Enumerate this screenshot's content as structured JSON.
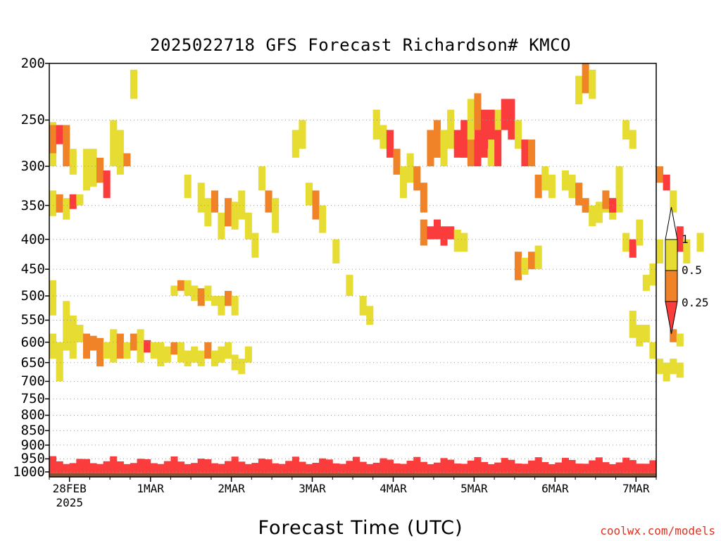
{
  "chart_data": {
    "type": "heatmap",
    "title": "2025022718 GFS Forecast Richardson# KMCO",
    "xlabel": "Forecast Time (UTC)",
    "ylabel": "",
    "y_scale": "log-pressure",
    "y_inverted": true,
    "y_ticks": [
      200,
      250,
      300,
      350,
      400,
      450,
      500,
      550,
      600,
      650,
      700,
      750,
      800,
      850,
      900,
      950,
      1000
    ],
    "x_ticks": [
      {
        "label": "28FEB",
        "sublabel": "2025",
        "hours_from_start": 6
      },
      {
        "label": "1MAR",
        "hours_from_start": 30
      },
      {
        "label": "2MAR",
        "hours_from_start": 54
      },
      {
        "label": "3MAR",
        "hours_from_start": 78
      },
      {
        "label": "4MAR",
        "hours_from_start": 102
      },
      {
        "label": "5MAR",
        "hours_from_start": 126
      },
      {
        "label": "6MAR",
        "hours_from_start": 150
      },
      {
        "label": "7MAR",
        "hours_from_start": 174
      }
    ],
    "x_range_hours": [
      0,
      180
    ],
    "y_range": [
      200,
      1020
    ],
    "grid": "dotted horizontal",
    "legend": {
      "placement": "right",
      "type": "colorbar",
      "labels": [
        "1",
        "0.5",
        "0.25"
      ],
      "bins": [
        {
          "range": "0.5-1",
          "color": "#e6dc32"
        },
        {
          "range": "0.25-0.5",
          "color": "#f08228"
        },
        {
          "range": "<0.25",
          "color": "#fa3c3c"
        }
      ]
    },
    "colors": {
      "low": "#fa3c3c",
      "mid": "#f08228",
      "high": "#e6dc32",
      "ground": "#8c5030"
    },
    "cells": [
      [
        0,
        252,
        300,
        "high"
      ],
      [
        0,
        255,
        285,
        "mid"
      ],
      [
        1,
        255,
        275,
        "low"
      ],
      [
        2,
        255,
        300,
        "mid"
      ],
      [
        3,
        280,
        310,
        "high"
      ],
      [
        0,
        330,
        365,
        "high"
      ],
      [
        1,
        335,
        360,
        "mid"
      ],
      [
        2,
        340,
        370,
        "high"
      ],
      [
        3,
        335,
        355,
        "low"
      ],
      [
        4,
        335,
        350,
        "high"
      ],
      [
        5,
        280,
        330,
        "high"
      ],
      [
        6,
        280,
        325,
        "high"
      ],
      [
        7,
        290,
        320,
        "mid"
      ],
      [
        8,
        305,
        340,
        "low"
      ],
      [
        9,
        250,
        300,
        "high"
      ],
      [
        10,
        260,
        310,
        "high"
      ],
      [
        11,
        285,
        300,
        "mid"
      ],
      [
        12,
        205,
        230,
        "high"
      ],
      [
        0,
        470,
        540,
        "high"
      ],
      [
        2,
        510,
        620,
        "high"
      ],
      [
        3,
        540,
        640,
        "high"
      ],
      [
        4,
        560,
        600,
        "high"
      ],
      [
        5,
        580,
        640,
        "mid"
      ],
      [
        6,
        585,
        620,
        "mid"
      ],
      [
        7,
        590,
        660,
        "mid"
      ],
      [
        8,
        600,
        640,
        "high"
      ],
      [
        9,
        570,
        650,
        "high"
      ],
      [
        10,
        580,
        640,
        "mid"
      ],
      [
        11,
        600,
        640,
        "high"
      ],
      [
        12,
        580,
        620,
        "mid"
      ],
      [
        13,
        570,
        650,
        "high"
      ],
      [
        14,
        595,
        625,
        "low"
      ],
      [
        15,
        600,
        640,
        "high"
      ],
      [
        16,
        620,
        660,
        "high"
      ],
      [
        0,
        580,
        640,
        "high"
      ],
      [
        1,
        600,
        700,
        "high"
      ],
      [
        20,
        310,
        340,
        "high"
      ],
      [
        22,
        320,
        360,
        "high"
      ],
      [
        23,
        340,
        380,
        "high"
      ],
      [
        24,
        330,
        360,
        "mid"
      ],
      [
        25,
        360,
        400,
        "high"
      ],
      [
        26,
        340,
        380,
        "mid"
      ],
      [
        27,
        345,
        385,
        "high"
      ],
      [
        28,
        330,
        370,
        "high"
      ],
      [
        29,
        360,
        400,
        "high"
      ],
      [
        30,
        390,
        430,
        "high"
      ],
      [
        31,
        300,
        330,
        "high"
      ],
      [
        32,
        330,
        360,
        "mid"
      ],
      [
        33,
        340,
        390,
        "high"
      ],
      [
        18,
        480,
        500,
        "high"
      ],
      [
        19,
        470,
        490,
        "mid"
      ],
      [
        20,
        470,
        500,
        "high"
      ],
      [
        21,
        480,
        510,
        "high"
      ],
      [
        22,
        485,
        520,
        "mid"
      ],
      [
        23,
        480,
        510,
        "high"
      ],
      [
        24,
        500,
        520,
        "high"
      ],
      [
        25,
        500,
        540,
        "high"
      ],
      [
        26,
        490,
        520,
        "mid"
      ],
      [
        27,
        500,
        540,
        "high"
      ],
      [
        16,
        600,
        640,
        "high"
      ],
      [
        17,
        610,
        650,
        "high"
      ],
      [
        18,
        600,
        630,
        "mid"
      ],
      [
        19,
        600,
        650,
        "high"
      ],
      [
        20,
        620,
        660,
        "high"
      ],
      [
        21,
        610,
        650,
        "high"
      ],
      [
        22,
        620,
        660,
        "high"
      ],
      [
        23,
        600,
        640,
        "mid"
      ],
      [
        24,
        620,
        660,
        "high"
      ],
      [
        25,
        610,
        650,
        "high"
      ],
      [
        26,
        600,
        640,
        "high"
      ],
      [
        27,
        630,
        670,
        "high"
      ],
      [
        28,
        640,
        680,
        "high"
      ],
      [
        29,
        610,
        650,
        "high"
      ],
      [
        36,
        260,
        290,
        "high"
      ],
      [
        37,
        250,
        280,
        "high"
      ],
      [
        38,
        320,
        350,
        "high"
      ],
      [
        39,
        330,
        370,
        "mid"
      ],
      [
        40,
        350,
        390,
        "high"
      ],
      [
        42,
        400,
        440,
        "high"
      ],
      [
        44,
        460,
        500,
        "high"
      ],
      [
        46,
        500,
        540,
        "high"
      ],
      [
        47,
        520,
        560,
        "high"
      ],
      [
        48,
        240,
        270,
        "high"
      ],
      [
        49,
        255,
        280,
        "high"
      ],
      [
        50,
        260,
        290,
        "low"
      ],
      [
        51,
        280,
        310,
        "mid"
      ],
      [
        52,
        300,
        340,
        "high"
      ],
      [
        53,
        285,
        320,
        "high"
      ],
      [
        54,
        300,
        330,
        "mid"
      ],
      [
        55,
        320,
        360,
        "mid"
      ],
      [
        56,
        260,
        300,
        "mid"
      ],
      [
        57,
        250,
        290,
        "mid"
      ],
      [
        58,
        260,
        300,
        "high"
      ],
      [
        59,
        240,
        280,
        "high"
      ],
      [
        60,
        260,
        290,
        "low"
      ],
      [
        61,
        250,
        290,
        "low"
      ],
      [
        62,
        260,
        300,
        "mid"
      ],
      [
        63,
        250,
        300,
        "low"
      ],
      [
        64,
        260,
        290,
        "low"
      ],
      [
        65,
        260,
        300,
        "high"
      ],
      [
        66,
        240,
        270,
        "high"
      ],
      [
        67,
        240,
        260,
        "high"
      ],
      [
        55,
        370,
        410,
        "mid"
      ],
      [
        56,
        380,
        400,
        "low"
      ],
      [
        57,
        370,
        400,
        "low"
      ],
      [
        58,
        380,
        410,
        "low"
      ],
      [
        59,
        380,
        400,
        "low"
      ],
      [
        60,
        385,
        420,
        "high"
      ],
      [
        61,
        390,
        420,
        "high"
      ],
      [
        62,
        230,
        270,
        "high"
      ],
      [
        63,
        225,
        260,
        "mid"
      ],
      [
        64,
        240,
        280,
        "low"
      ],
      [
        65,
        240,
        270,
        "low"
      ],
      [
        66,
        260,
        300,
        "low"
      ],
      [
        67,
        230,
        260,
        "low"
      ],
      [
        68,
        230,
        270,
        "low"
      ],
      [
        69,
        250,
        280,
        "high"
      ],
      [
        70,
        270,
        300,
        "low"
      ],
      [
        71,
        270,
        300,
        "mid"
      ],
      [
        72,
        310,
        340,
        "mid"
      ],
      [
        73,
        300,
        330,
        "high"
      ],
      [
        74,
        310,
        340,
        "high"
      ],
      [
        69,
        420,
        470,
        "mid"
      ],
      [
        70,
        430,
        460,
        "high"
      ],
      [
        71,
        420,
        450,
        "mid"
      ],
      [
        72,
        410,
        450,
        "high"
      ],
      [
        76,
        305,
        330,
        "high"
      ],
      [
        77,
        310,
        340,
        "high"
      ],
      [
        78,
        320,
        350,
        "mid"
      ],
      [
        79,
        340,
        360,
        "mid"
      ],
      [
        80,
        350,
        380,
        "high"
      ],
      [
        81,
        345,
        375,
        "high"
      ],
      [
        82,
        330,
        360,
        "high"
      ],
      [
        83,
        340,
        370,
        "high"
      ],
      [
        84,
        330,
        360,
        "high"
      ],
      [
        85,
        390,
        420,
        "high"
      ],
      [
        86,
        400,
        430,
        "low"
      ],
      [
        87,
        370,
        410,
        "high"
      ],
      [
        88,
        460,
        490,
        "high"
      ],
      [
        89,
        440,
        480,
        "high"
      ],
      [
        90,
        400,
        440,
        "high"
      ],
      [
        78,
        210,
        235,
        "high"
      ],
      [
        79,
        200,
        225,
        "mid"
      ],
      [
        80,
        205,
        230,
        "high"
      ],
      [
        82,
        330,
        355,
        "mid"
      ],
      [
        83,
        340,
        360,
        "low"
      ],
      [
        84,
        300,
        330,
        "high"
      ],
      [
        85,
        250,
        270,
        "high"
      ],
      [
        86,
        260,
        280,
        "high"
      ],
      [
        90,
        300,
        320,
        "mid"
      ],
      [
        91,
        310,
        330,
        "low"
      ],
      [
        92,
        330,
        360,
        "high"
      ],
      [
        93,
        380,
        420,
        "low"
      ],
      [
        94,
        400,
        440,
        "high"
      ],
      [
        96,
        390,
        420,
        "high"
      ],
      [
        86,
        530,
        590,
        "high"
      ],
      [
        87,
        560,
        610,
        "high"
      ],
      [
        88,
        560,
        600,
        "high"
      ],
      [
        89,
        600,
        640,
        "high"
      ],
      [
        90,
        640,
        680,
        "high"
      ],
      [
        91,
        650,
        700,
        "high"
      ],
      [
        92,
        640,
        680,
        "high"
      ],
      [
        93,
        650,
        690,
        "high"
      ],
      [
        92,
        570,
        600,
        "mid"
      ],
      [
        93,
        580,
        610,
        "high"
      ]
    ]
  },
  "credit": "coolwx.com/models"
}
